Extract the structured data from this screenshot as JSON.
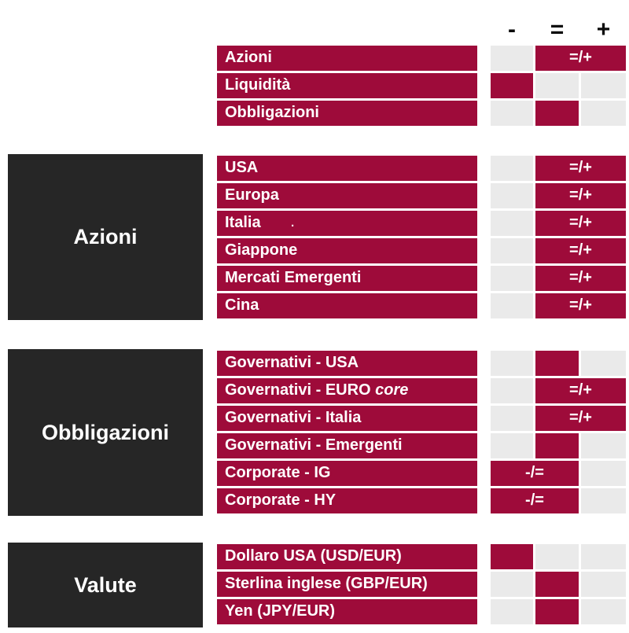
{
  "palette": {
    "red": "#9E0B3A",
    "gray": "#EAEAEA",
    "dark": "#262626",
    "white": "#FFFFFF"
  },
  "chart_data": {
    "type": "table",
    "columns": [
      "-",
      "=",
      "+"
    ],
    "column_meanings": [
      "negative",
      "neutral",
      "positive"
    ],
    "top_rows": [
      {
        "label": "Azioni",
        "view": "=/+"
      },
      {
        "label": "Liquidità",
        "view": "-"
      },
      {
        "label": "Obbligazioni",
        "view": "="
      }
    ],
    "sections": [
      {
        "title": "Azioni",
        "rows": [
          {
            "label": "USA",
            "view": "=/+"
          },
          {
            "label": "Europa",
            "view": "=/+"
          },
          {
            "label": "Italia",
            "note": ".",
            "view": "=/+"
          },
          {
            "label": "Giappone",
            "view": "=/+"
          },
          {
            "label": "Mercati Emergenti",
            "view": "=/+"
          },
          {
            "label": "Cina",
            "view": "=/+"
          }
        ]
      },
      {
        "title": "Obbligazioni",
        "rows": [
          {
            "label": "Governativi - USA",
            "view": "="
          },
          {
            "label": "Governativi - EURO ",
            "label_italic": "core",
            "view": "=/+"
          },
          {
            "label": "Governativi - Italia",
            "view": "=/+"
          },
          {
            "label": "Governativi - Emergenti",
            "view": "="
          },
          {
            "label": "Corporate - IG",
            "view": "-/="
          },
          {
            "label": "Corporate - HY",
            "view": "-/="
          }
        ]
      },
      {
        "title": "Valute",
        "rows": [
          {
            "label": "Dollaro USA (USD/EUR)",
            "view": "-"
          },
          {
            "label": "Sterlina inglese (GBP/EUR)",
            "view": "="
          },
          {
            "label": "Yen (JPY/EUR)",
            "view": "="
          }
        ]
      }
    ]
  }
}
